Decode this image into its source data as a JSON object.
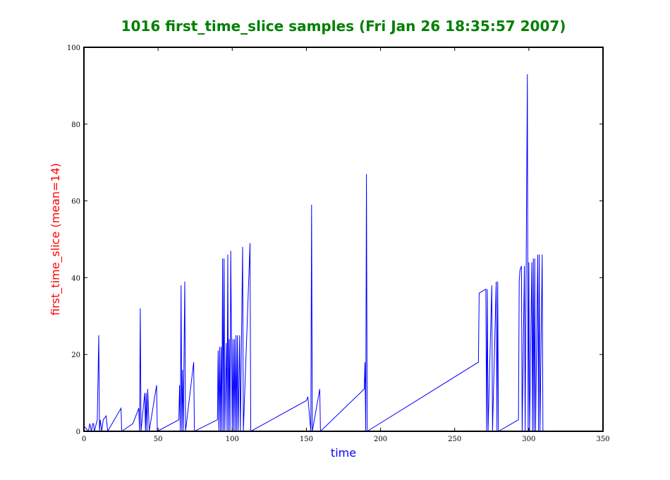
{
  "chart_data": {
    "type": "line",
    "title": "1016 first_time_slice samples (Fri Jan 26 18:35:57 2007)",
    "xlabel": "time",
    "ylabel": "first_time_slice (mean=14)",
    "color": "#0000ff",
    "x": [
      0,
      1,
      3,
      4,
      5,
      6,
      6.5,
      7,
      9,
      10,
      10.5,
      11,
      12,
      13,
      15,
      16,
      25,
      25.5,
      33,
      37,
      37.5,
      38,
      38.5,
      41,
      41.5,
      42,
      42.5,
      43,
      44,
      49,
      49.5,
      64,
      64.5,
      65,
      65.5,
      66,
      66.5,
      67,
      68,
      68.5,
      74,
      74.5,
      90,
      90.5,
      91,
      91.5,
      92,
      92.5,
      93,
      93.5,
      94,
      94.5,
      95,
      96,
      96.5,
      97,
      97.5,
      98,
      98.5,
      99,
      100,
      100.5,
      101,
      101.5,
      102,
      102.5,
      103,
      103.5,
      104,
      105,
      105.5,
      107,
      107.5,
      112,
      112.5,
      150,
      151,
      153,
      153.5,
      154,
      159,
      159.5,
      189,
      189.5,
      190,
      190.5,
      191,
      266,
      266.5,
      271,
      271.5,
      272,
      272.5,
      275,
      275.5,
      278,
      278.5,
      279,
      279.5,
      293,
      293.5,
      294,
      295,
      295.5,
      297,
      297.5,
      299,
      299.5,
      300,
      300.5,
      302,
      302.5,
      303,
      303.5,
      304,
      304.5,
      306,
      306.5,
      307,
      307.5,
      309,
      309.5
    ],
    "values": [
      1,
      1,
      0,
      2,
      0,
      2,
      2,
      0,
      3,
      25,
      0,
      3,
      0,
      3,
      4,
      0,
      6,
      0,
      2,
      6,
      0,
      32,
      0,
      10,
      0,
      10,
      0,
      11,
      0,
      12,
      0,
      3,
      12,
      0,
      38,
      0,
      16,
      0,
      39,
      0,
      18,
      0,
      3,
      21,
      0,
      22,
      0,
      22,
      0,
      45,
      0,
      45,
      0,
      23,
      0,
      46,
      0,
      24,
      0,
      47,
      0,
      24,
      0,
      24,
      0,
      25,
      0,
      25,
      0,
      25,
      0,
      48,
      0,
      49,
      0,
      8,
      9,
      0,
      59,
      0,
      11,
      0,
      11,
      18,
      0,
      67,
      0,
      18,
      36,
      37,
      0,
      37,
      0,
      38,
      0,
      39,
      0,
      39,
      0,
      3,
      39,
      42,
      43,
      0,
      43,
      0,
      93,
      0,
      44,
      0,
      44,
      0,
      45,
      0,
      45,
      0,
      46,
      0,
      46,
      0,
      46,
      0
    ],
    "xlim": [
      0,
      350
    ],
    "xticks": [
      0,
      50,
      100,
      150,
      200,
      250,
      300,
      350
    ],
    "ylim": [
      0,
      100
    ],
    "yticks": [
      0,
      20,
      40,
      60,
      80,
      100
    ]
  }
}
